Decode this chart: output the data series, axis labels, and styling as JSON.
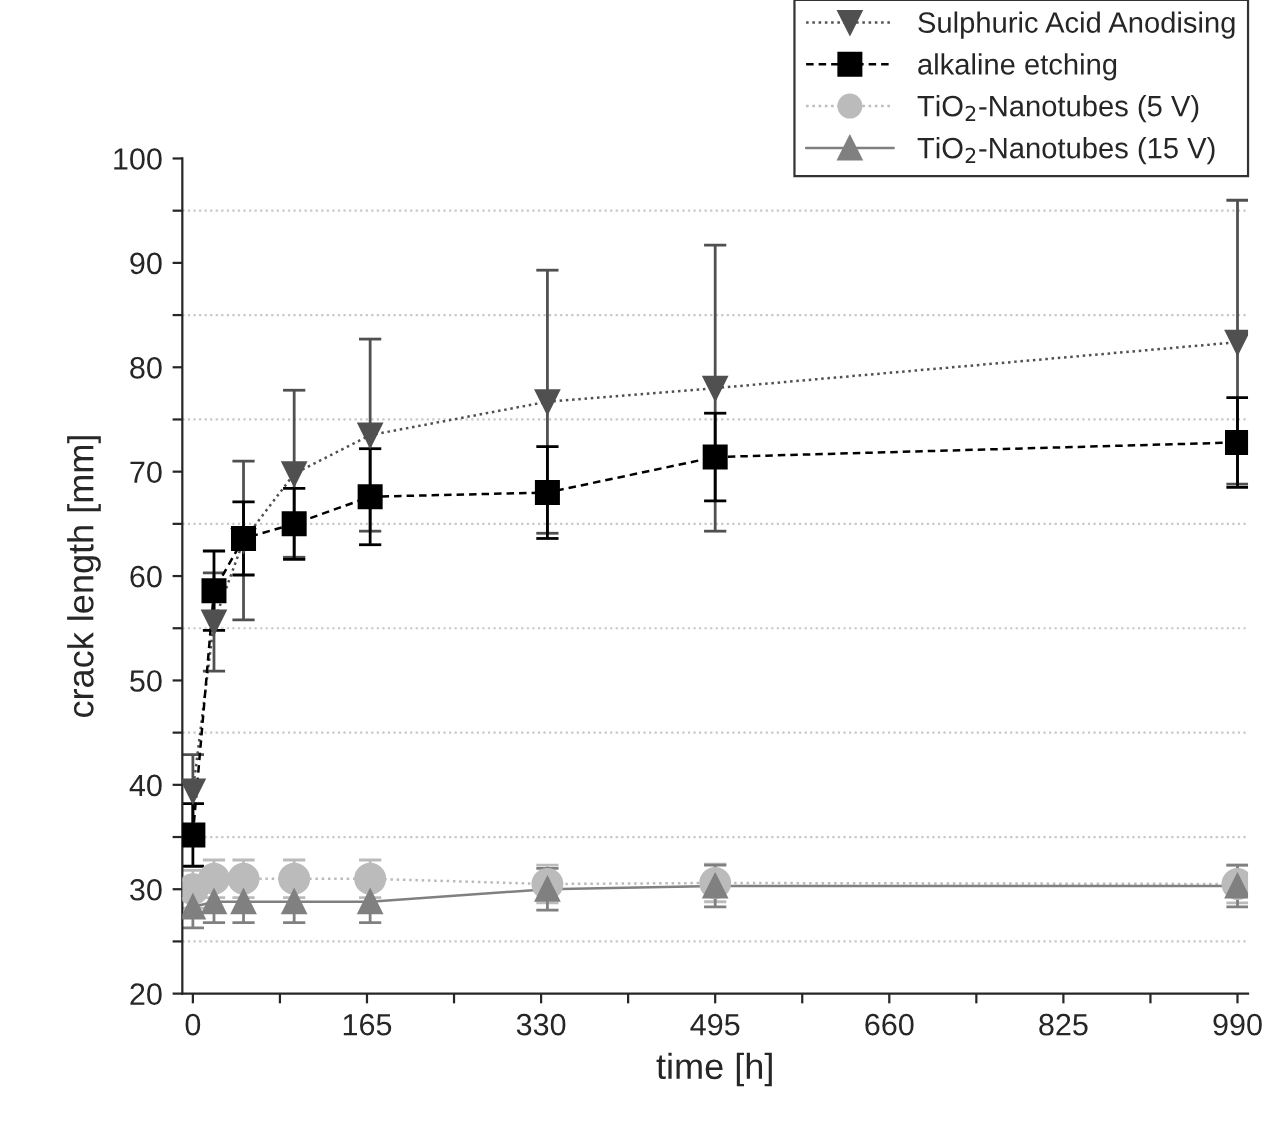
{
  "chart_data": {
    "type": "line",
    "xlabel": "time [h]",
    "ylabel": "crack length [mm]",
    "x": [
      0,
      20,
      48,
      96,
      168,
      336,
      495,
      990
    ],
    "series": [
      {
        "name": "Sulphuric Acid Anodising",
        "color": "#505050",
        "marker": "triangle_down",
        "line_style": "dotted",
        "values": [
          39.4,
          55.6,
          63.4,
          69.8,
          73.5,
          76.7,
          78.0,
          82.4
        ],
        "errors": [
          3.5,
          4.7,
          7.6,
          8.0,
          9.2,
          12.6,
          13.7,
          13.6
        ]
      },
      {
        "name": "alkaline etching",
        "color": "#000000",
        "marker": "square",
        "line_style": "dashed",
        "values": [
          35.2,
          58.6,
          63.6,
          65.0,
          67.6,
          68.0,
          71.4,
          72.8
        ],
        "errors": [
          3.0,
          3.8,
          3.5,
          3.4,
          4.6,
          4.4,
          4.2,
          4.3
        ]
      },
      {
        "name": "TiO$_{2}$-Nanotubes (5 V)",
        "color": "#bbbbbb",
        "marker": "circle",
        "line_style": "dotted",
        "values": [
          30.0,
          31.0,
          31.0,
          31.0,
          31.0,
          30.5,
          30.6,
          30.5
        ],
        "errors": [
          1.8,
          1.8,
          1.8,
          1.8,
          1.8,
          1.8,
          1.8,
          1.8
        ]
      },
      {
        "name": "TiO$_{2}$-Nanotubes (15 V)",
        "color": "#808080",
        "marker": "triangle",
        "line_style": "solid",
        "values": [
          28.3,
          28.8,
          28.8,
          28.8,
          28.8,
          30.0,
          30.3,
          30.3
        ],
        "errors": [
          2.0,
          2.0,
          2.0,
          2.0,
          2.0,
          2.0,
          2.0,
          2.0
        ]
      }
    ],
    "xlim": [
      -10,
      1000
    ],
    "ylim": [
      20,
      100
    ],
    "xticks": [
      0,
      {
        "value": 82.5,
        "label": null
      },
      165,
      {
        "value": 247.5,
        "label": null
      },
      330,
      {
        "value": 412.5,
        "label": null
      },
      495,
      {
        "value": 577.5,
        "label": null
      },
      660,
      {
        "value": 742.5,
        "label": null
      },
      825,
      {
        "value": 907.5,
        "label": null
      },
      990
    ],
    "yticks": [
      20,
      {
        "value": 25,
        "label": null
      },
      30,
      {
        "value": 35,
        "label": null
      },
      40,
      {
        "value": 45,
        "label": null
      },
      50,
      {
        "value": 55,
        "label": null
      },
      60,
      {
        "value": 65,
        "label": null
      },
      70,
      {
        "value": 75,
        "label": null
      },
      80,
      {
        "value": 85,
        "label": null
      },
      90,
      {
        "value": 95,
        "label": null
      },
      100
    ],
    "ref_lines": [
      {
        "axis": "y",
        "value": 25,
        "color": "#c8c8c8",
        "line_style": "dotted"
      },
      {
        "axis": "y",
        "value": 35,
        "color": "#c8c8c8",
        "line_style": "dotted"
      },
      {
        "axis": "y",
        "value": 45,
        "color": "#c8c8c8",
        "line_style": "dotted"
      },
      {
        "axis": "y",
        "value": 55,
        "color": "#c8c8c8",
        "line_style": "dotted"
      },
      {
        "axis": "y",
        "value": 65,
        "color": "#c8c8c8",
        "line_style": "dotted"
      },
      {
        "axis": "y",
        "value": 75,
        "color": "#c8c8c8",
        "line_style": "dotted"
      },
      {
        "axis": "y",
        "value": 85,
        "color": "#c8c8c8",
        "line_style": "dotted"
      },
      {
        "axis": "y",
        "value": 95,
        "color": "#c8c8c8",
        "line_style": "dotted"
      }
    ],
    "grid": false,
    "legend": "top right"
  }
}
